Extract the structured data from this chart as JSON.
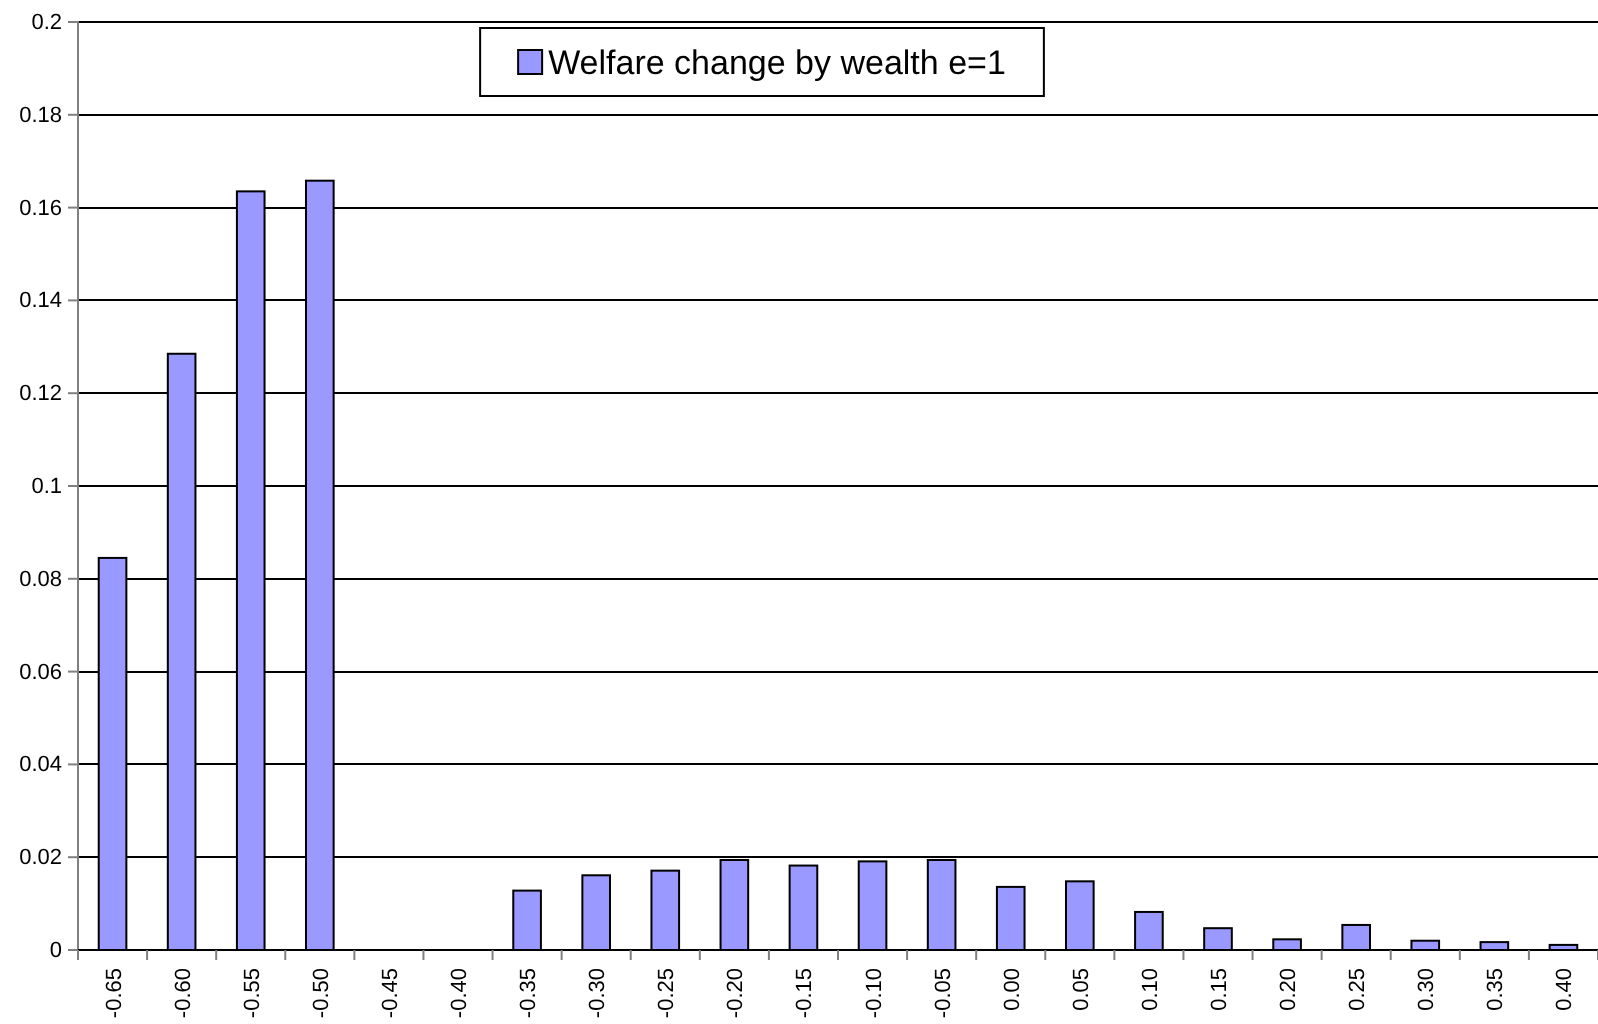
{
  "chart_data": {
    "type": "bar",
    "categories": [
      "-0.65",
      "-0.60",
      "-0.55",
      "-0.50",
      "-0.45",
      "-0.40",
      "-0.35",
      "-0.30",
      "-0.25",
      "-0.20",
      "-0.15",
      "-0.10",
      "-0.05",
      "0.00",
      "0.05",
      "0.10",
      "0.15",
      "0.20",
      "0.25",
      "0.30",
      "0.35",
      "0.40"
    ],
    "series": [
      {
        "name": "Welfare change by wealth e=1",
        "color": "#9999ff",
        "values": [
          0.0845,
          0.1285,
          0.1635,
          0.1658,
          0,
          0,
          0.0128,
          0.0161,
          0.0171,
          0.0194,
          0.0182,
          0.0191,
          0.0194,
          0.0136,
          0.0148,
          0.0082,
          0.0047,
          0.0023,
          0.0054,
          0.002,
          0.0017,
          0.0011
        ]
      }
    ],
    "ylim": [
      0,
      0.2
    ],
    "yticks": [
      0,
      0.02,
      0.04,
      0.06,
      0.08,
      0.1,
      0.12,
      0.14,
      0.16,
      0.18,
      0.2
    ],
    "grid": "y",
    "legend": "top"
  }
}
